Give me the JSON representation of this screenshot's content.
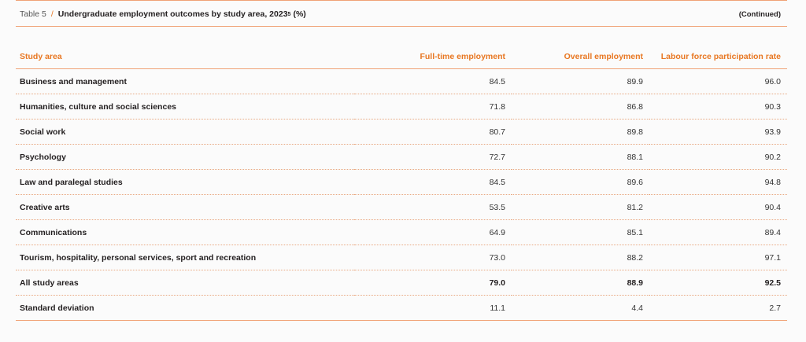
{
  "table": {
    "label": "Table 5",
    "separator": "/",
    "title": "Undergraduate employment outcomes by study area, 2023",
    "superscript": "5",
    "unit": "(%)",
    "continued": "(Continued)",
    "headers": [
      "Study area",
      "Full-time employment",
      "Overall employment",
      "Labour force participation rate"
    ],
    "rows": [
      [
        "Business and management",
        "84.5",
        "89.9",
        "96.0"
      ],
      [
        "Humanities, culture and social sciences",
        "71.8",
        "86.8",
        "90.3"
      ],
      [
        "Social work",
        "80.7",
        "89.8",
        "93.9"
      ],
      [
        "Psychology",
        "72.7",
        "88.1",
        "90.2"
      ],
      [
        "Law and paralegal studies",
        "84.5",
        "89.6",
        "94.8"
      ],
      [
        "Creative arts",
        "53.5",
        "81.2",
        "90.4"
      ],
      [
        "Communications",
        "64.9",
        "85.1",
        "89.4"
      ],
      [
        "Tourism, hospitality, personal services, sport and recreation",
        "73.0",
        "88.2",
        "97.1"
      ],
      [
        "All study areas",
        "79.0",
        "88.9",
        "92.5"
      ],
      [
        "Standard deviation",
        "11.1",
        "4.4",
        "2.7"
      ]
    ]
  },
  "colors": {
    "accent": "#e87722",
    "rule": "#f0a276",
    "text": "#231f20"
  }
}
